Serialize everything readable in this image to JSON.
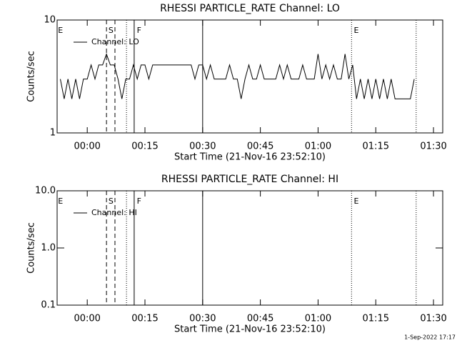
{
  "chart_data": [
    {
      "type": "line",
      "title": "RHESSI PARTICLE_RATE Channel: LO",
      "x_label": "Start Time (21-Nov-16 23:52:10)",
      "y_label": "Counts/sec",
      "xlim": [
        -7.83,
        92.4
      ],
      "ylim": [
        1,
        10
      ],
      "log_y": true,
      "xticks": [
        {
          "value": 0,
          "label": "00:00"
        },
        {
          "value": 15,
          "label": "00:15"
        },
        {
          "value": 30,
          "label": "00:30"
        },
        {
          "value": 45,
          "label": "00:45"
        },
        {
          "value": 60,
          "label": "01:00"
        },
        {
          "value": 75,
          "label": "01:15"
        },
        {
          "value": 90,
          "label": "01:30"
        }
      ],
      "yticks": [
        1,
        10
      ],
      "x": [
        -7,
        -6,
        -5,
        -4,
        -3,
        -2,
        -1,
        0,
        1,
        2,
        3,
        4,
        5,
        6,
        7,
        8,
        9,
        10,
        11,
        12,
        13,
        14,
        15,
        16,
        17,
        18,
        19,
        20,
        21,
        22,
        23,
        24,
        25,
        26,
        27,
        28,
        29,
        30,
        31,
        32,
        33,
        34,
        35,
        36,
        37,
        38,
        39,
        40,
        41,
        42,
        43,
        44,
        45,
        46,
        47,
        48,
        49,
        50,
        51,
        52,
        53,
        54,
        55,
        56,
        57,
        58,
        59,
        60,
        61,
        62,
        63,
        64,
        65,
        66,
        67,
        68,
        69,
        70,
        71,
        72,
        73,
        74,
        75,
        76,
        77,
        78,
        79,
        80,
        81,
        82,
        83,
        84,
        85
      ],
      "series": [
        {
          "name": "Channel: LO",
          "color": "#000000",
          "values": [
            3,
            2,
            3,
            2,
            3,
            2,
            3,
            3,
            4,
            3,
            4,
            4,
            5,
            4,
            4,
            3,
            2,
            3,
            3,
            4,
            3,
            4,
            4,
            3,
            4,
            4,
            4,
            4,
            4,
            4,
            4,
            4,
            4,
            4,
            4,
            3,
            4,
            4,
            3,
            4,
            3,
            3,
            3,
            3,
            4,
            3,
            3,
            2,
            3,
            4,
            3,
            3,
            4,
            3,
            3,
            3,
            3,
            4,
            3,
            4,
            3,
            3,
            3,
            4,
            3,
            3,
            3,
            5,
            3,
            4,
            3,
            4,
            3,
            3,
            5,
            3,
            4,
            2,
            3,
            2,
            3,
            2,
            3,
            2,
            3,
            2,
            3,
            2,
            2,
            2,
            2,
            2,
            3
          ]
        }
      ],
      "markers": [
        {
          "x": 5,
          "style": "dashed"
        },
        {
          "x": 7.2,
          "style": "dashed"
        },
        {
          "x": 10.2,
          "style": "dotted"
        },
        {
          "x": 12.2,
          "style": "solid"
        },
        {
          "x": 30,
          "style": "solid"
        },
        {
          "x": 68.7,
          "style": "dotted"
        },
        {
          "x": 85.5,
          "style": "dotted"
        }
      ],
      "annotations": [
        {
          "text": "E",
          "x": -7.6
        },
        {
          "text": "S",
          "x": 5.5
        },
        {
          "text": "F",
          "x": 12.9
        },
        {
          "text": "E",
          "x": 69.3
        }
      ]
    },
    {
      "type": "line",
      "title": "RHESSI PARTICLE_RATE Channel: HI",
      "x_label": "Start Time (21-Nov-16 23:52:10)",
      "y_label": "Counts/sec",
      "xlim": [
        -7.83,
        92.4
      ],
      "ylim": [
        0.1,
        10
      ],
      "log_y": true,
      "xticks": [
        {
          "value": 0,
          "label": "00:00"
        },
        {
          "value": 15,
          "label": "00:15"
        },
        {
          "value": 30,
          "label": "00:30"
        },
        {
          "value": 45,
          "label": "00:45"
        },
        {
          "value": 60,
          "label": "01:00"
        },
        {
          "value": 75,
          "label": "01:15"
        },
        {
          "value": 90,
          "label": "01:30"
        }
      ],
      "yticks": [
        0.1,
        {
          "value": 1,
          "label": "1.0"
        },
        {
          "value": 10,
          "label": "10.0"
        }
      ],
      "x": [],
      "series": [
        {
          "name": "Channel: HI",
          "color": "#000000",
          "values": []
        }
      ],
      "markers": [
        {
          "x": 5,
          "style": "dashed"
        },
        {
          "x": 7.2,
          "style": "dashed"
        },
        {
          "x": 10.2,
          "style": "dotted"
        },
        {
          "x": 12.2,
          "style": "solid"
        },
        {
          "x": 30,
          "style": "solid"
        },
        {
          "x": 68.7,
          "style": "dotted"
        },
        {
          "x": 85.5,
          "style": "dotted"
        }
      ],
      "annotations": [
        {
          "text": "E",
          "x": -7.6
        },
        {
          "text": "S",
          "x": 5.5
        },
        {
          "text": "F",
          "x": 12.9
        },
        {
          "text": "E",
          "x": 69.3
        }
      ]
    }
  ],
  "footer": "1-Sep-2022 17:17"
}
